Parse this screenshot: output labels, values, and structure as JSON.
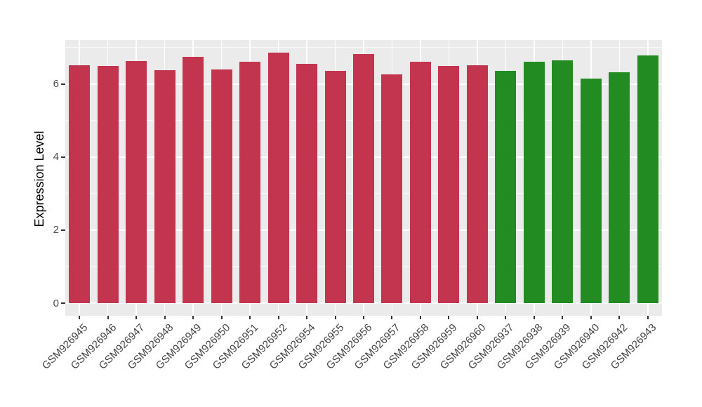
{
  "chart_data": {
    "type": "bar",
    "title": "",
    "xlabel": "",
    "ylabel": "Expression Level",
    "ylim": [
      0,
      7.21
    ],
    "yticks": [
      0,
      2,
      4,
      6
    ],
    "yminor_gridlines": [
      1,
      3,
      5,
      7
    ],
    "grid": "white major and minor horizontal lines, white vertical lines at category centers, on gray panel",
    "legend_position": "none",
    "panel_background": "#EBEBEB",
    "gridline_color": "#FFFFFF",
    "categories": [
      "GSM926945",
      "GSM926946",
      "GSM926947",
      "GSM926948",
      "GSM926949",
      "GSM926950",
      "GSM926951",
      "GSM926952",
      "GSM926954",
      "GSM926955",
      "GSM926956",
      "GSM926957",
      "GSM926958",
      "GSM926959",
      "GSM926960",
      "GSM926937",
      "GSM926938",
      "GSM926939",
      "GSM926940",
      "GSM926942",
      "GSM926943"
    ],
    "values": [
      6.52,
      6.49,
      6.64,
      6.39,
      6.74,
      6.4,
      6.62,
      6.87,
      6.55,
      6.37,
      6.83,
      6.27,
      6.61,
      6.49,
      6.52,
      6.37,
      6.61,
      6.66,
      6.16,
      6.32,
      6.79
    ],
    "groups": [
      "red",
      "red",
      "red",
      "red",
      "red",
      "red",
      "red",
      "red",
      "red",
      "red",
      "red",
      "red",
      "red",
      "red",
      "red",
      "green",
      "green",
      "green",
      "green",
      "green",
      "green"
    ],
    "group_colors": {
      "red": "#C3344E",
      "green": "#228B22"
    },
    "x_label_rotation_deg": 45
  }
}
